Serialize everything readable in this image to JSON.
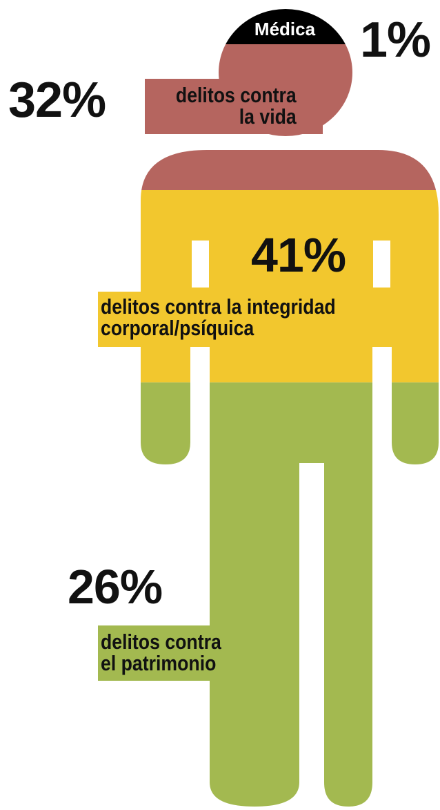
{
  "chart_data": {
    "type": "pie",
    "title": "",
    "slices": [
      {
        "label": "Médica",
        "value": 1,
        "value_label": "1%",
        "color": "#000000"
      },
      {
        "label": "delitos contra la vida",
        "value": 32,
        "value_label": "32%",
        "color": "#b5655f"
      },
      {
        "label": "delitos contra la integridad corporal/psíquica",
        "value": 41,
        "value_label": "41%",
        "color": "#f2c72e"
      },
      {
        "label": "delitos contra el patrimonio",
        "value": 26,
        "value_label": "26%",
        "color": "#a3b950"
      }
    ],
    "labels": {
      "medica": "Médica",
      "vida_l1": "delitos contra",
      "vida_l2": "la vida",
      "integridad_l1": "delitos contra la integridad",
      "integridad_l2": "corporal/psíquica",
      "patrimonio_l1": "delitos contra",
      "patrimonio_l2": "el patrimonio"
    }
  }
}
